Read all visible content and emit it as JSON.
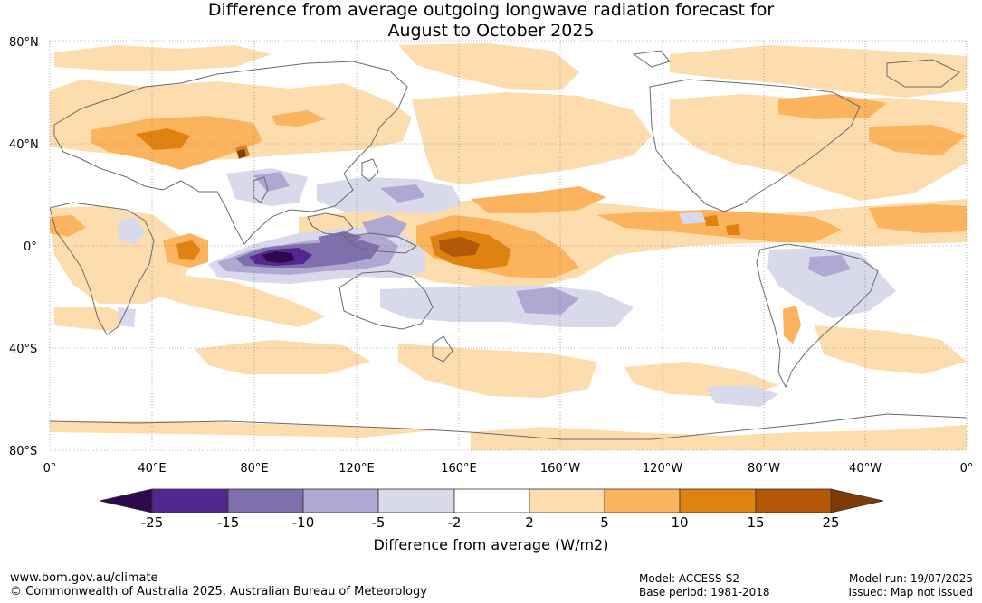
{
  "title_line1": "Difference from average outgoing longwave radiation forecast for",
  "title_line2": "August to October 2025",
  "lat_labels": [
    "80°N",
    "40°N",
    "0°",
    "40°S",
    "80°S"
  ],
  "lon_labels": [
    "0°",
    "40°E",
    "80°E",
    "120°E",
    "160°E",
    "160°W",
    "120°W",
    "80°W",
    "40°W",
    "0°"
  ],
  "colorbar": {
    "label": "Difference from average (W/m2)",
    "ticks": [
      "-25",
      "-15",
      "-10",
      "-5",
      "-2",
      "2",
      "5",
      "10",
      "15",
      "25"
    ],
    "colors": [
      "#2d0a4e",
      "#54278f",
      "#7f6fad",
      "#b0a8d2",
      "#d9d9ec",
      "#ffffff",
      "#fddcae",
      "#fbb35e",
      "#e0820f",
      "#b35806",
      "#7f3b08"
    ]
  },
  "footer": {
    "website": "www.bom.gov.au/climate",
    "copyright": "© Commonwealth of Australia 2025, Australian Bureau of Meteorology",
    "model": "Model: ACCESS-S2",
    "base_period": "Base period: 1981-2018",
    "model_run": "Model run: 19/07/2025",
    "issued": "Issued: Map not issued"
  }
}
